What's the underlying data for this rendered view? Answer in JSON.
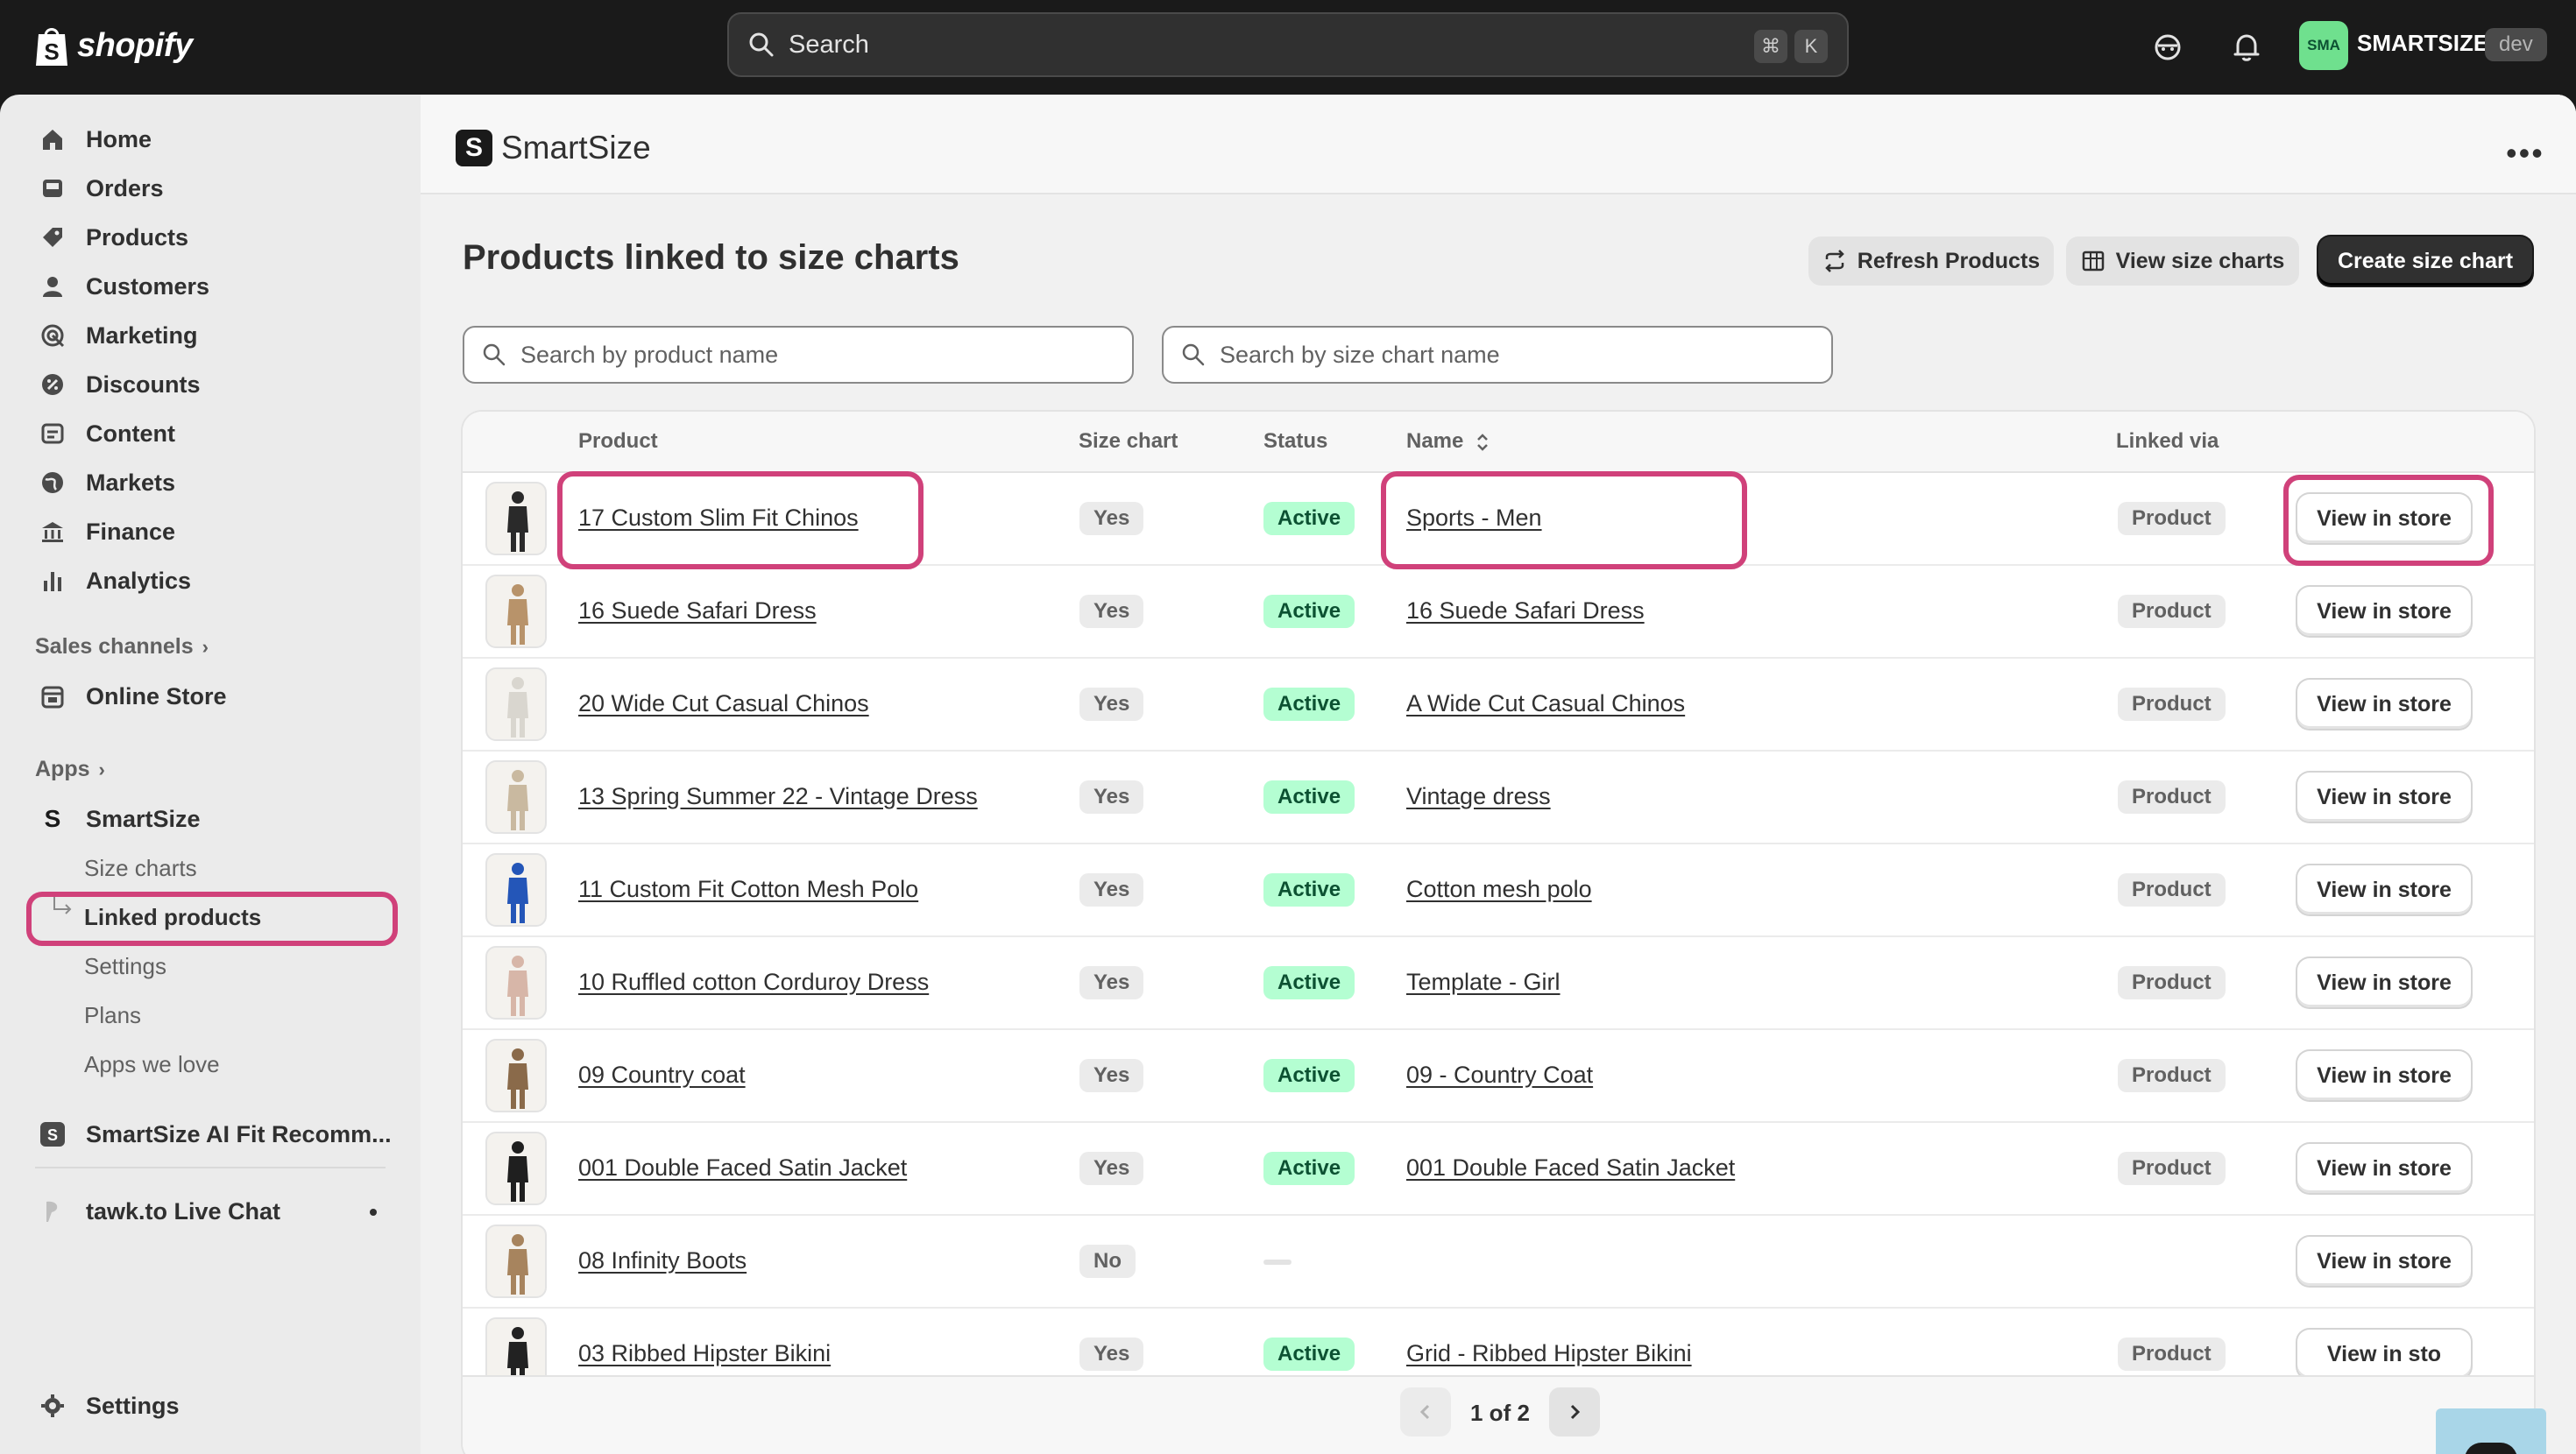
{
  "topbar": {
    "brand": "shopify",
    "search_placeholder": "Search",
    "shortcut_cmd": "⌘",
    "shortcut_key": "K",
    "store_initials": "SMA",
    "store_name": "SMARTSIZE",
    "store_env": "dev"
  },
  "sidebar": {
    "items": [
      {
        "label": "Home",
        "icon": "home-icon"
      },
      {
        "label": "Orders",
        "icon": "inbox-icon"
      },
      {
        "label": "Products",
        "icon": "tag-icon"
      },
      {
        "label": "Customers",
        "icon": "person-icon"
      },
      {
        "label": "Marketing",
        "icon": "target-icon"
      },
      {
        "label": "Discounts",
        "icon": "discount-icon"
      },
      {
        "label": "Content",
        "icon": "content-icon"
      },
      {
        "label": "Markets",
        "icon": "globe-icon"
      },
      {
        "label": "Finance",
        "icon": "bank-icon"
      },
      {
        "label": "Analytics",
        "icon": "bar-chart-icon"
      }
    ],
    "sales_channels_label": "Sales channels",
    "online_store_label": "Online Store",
    "apps_label": "Apps",
    "smartsize_label": "SmartSize",
    "smartsize_sub": [
      "Size charts",
      "Linked products",
      "Settings",
      "Plans",
      "Apps we love"
    ],
    "smartsize_ai_label": "SmartSize AI Fit Recomm...",
    "tawk_label": "tawk.to Live Chat",
    "settings_label": "Settings"
  },
  "app": {
    "title": "SmartSize",
    "logo_letter": "S",
    "more": "•••"
  },
  "page": {
    "title": "Products linked to size charts",
    "refresh_label": "Refresh Products",
    "view_charts_label": "View size charts",
    "create_label": "Create size chart",
    "search_product_placeholder": "Search by product name",
    "search_chart_placeholder": "Search by size chart name"
  },
  "table": {
    "headers": {
      "product": "Product",
      "size_chart": "Size chart",
      "status": "Status",
      "name": "Name",
      "linked_via": "Linked via"
    },
    "rows": [
      {
        "product": "17 Custom Slim Fit Chinos",
        "size_chart": "Yes",
        "status": "Active",
        "name": "Sports - Men",
        "linked_via": "Product",
        "action": "View in store"
      },
      {
        "product": "16 Suede Safari Dress",
        "size_chart": "Yes",
        "status": "Active",
        "name": "16 Suede Safari Dress",
        "linked_via": "Product",
        "action": "View in store"
      },
      {
        "product": "20 Wide Cut Casual Chinos",
        "size_chart": "Yes",
        "status": "Active",
        "name": "A Wide Cut Casual Chinos",
        "linked_via": "Product",
        "action": "View in store"
      },
      {
        "product": "13 Spring Summer 22 - Vintage Dress",
        "size_chart": "Yes",
        "status": "Active",
        "name": "Vintage dress",
        "linked_via": "Product",
        "action": "View in store"
      },
      {
        "product": "11 Custom Fit Cotton Mesh Polo",
        "size_chart": "Yes",
        "status": "Active",
        "name": "Cotton mesh polo",
        "linked_via": "Product",
        "action": "View in store"
      },
      {
        "product": "10 Ruffled cotton Corduroy Dress",
        "size_chart": "Yes",
        "status": "Active",
        "name": "Template - Girl",
        "linked_via": "Product",
        "action": "View in store"
      },
      {
        "product": "09 Country coat",
        "size_chart": "Yes",
        "status": "Active",
        "name": "09 - Country Coat",
        "linked_via": "Product",
        "action": "View in store"
      },
      {
        "product": "001 Double Faced Satin Jacket",
        "size_chart": "Yes",
        "status": "Active",
        "name": "001 Double Faced Satin Jacket",
        "linked_via": "Product",
        "action": "View in store"
      },
      {
        "product": "08 Infinity Boots",
        "size_chart": "No",
        "status": "",
        "name": "",
        "linked_via": "",
        "action": "View in store"
      },
      {
        "product": "03 Ribbed Hipster Bikini",
        "size_chart": "Yes",
        "status": "Active",
        "name": "Grid - Ribbed Hipster Bikini",
        "linked_via": "Product",
        "action": "View in sto"
      }
    ]
  },
  "pagination": {
    "label": "1 of 2"
  },
  "colors": {
    "highlight": "#d0417a",
    "active_badge": "#b4fed2",
    "topbar": "#1a1a1a",
    "store_badge": "#6fe08e",
    "chat_bubble": "#a9d6e8"
  }
}
